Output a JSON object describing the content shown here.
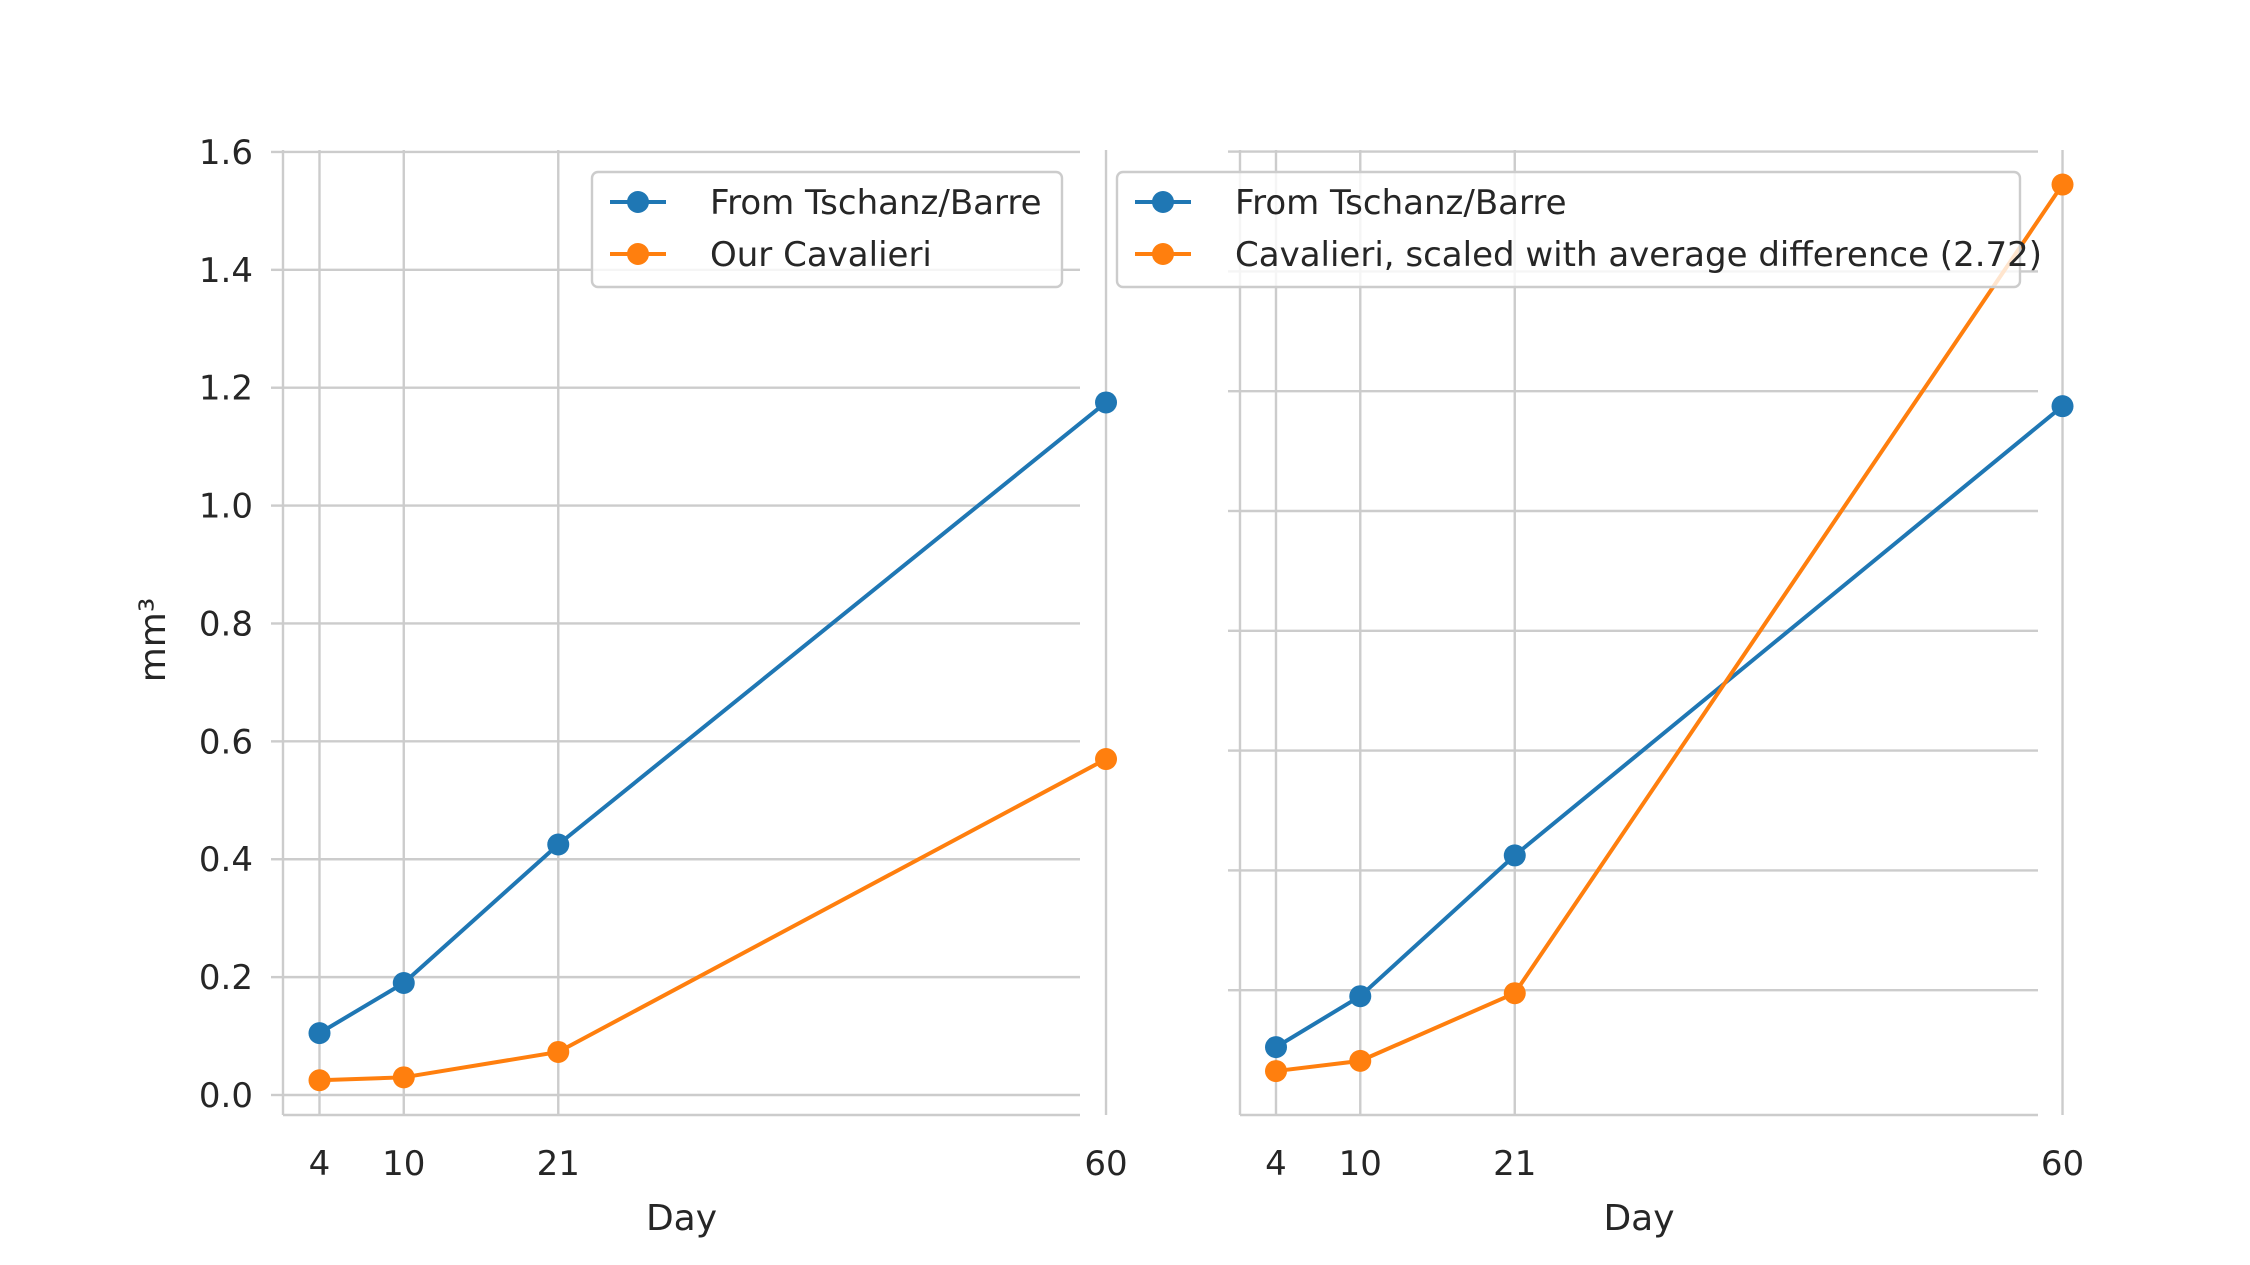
{
  "chart_data": [
    {
      "type": "line",
      "x": [
        4,
        10,
        21,
        60
      ],
      "xticks": [
        4,
        10,
        21,
        60
      ],
      "xlabel": "Day",
      "ylabel": "mm³",
      "ylim": [
        0.0,
        1.6
      ],
      "yticks": [
        0.0,
        0.2,
        0.4,
        0.6,
        0.8,
        1.0,
        1.2,
        1.4,
        1.6
      ],
      "ytick_labels": [
        "0.0",
        "0.2",
        "0.4",
        "0.6",
        "0.8",
        "1.0",
        "1.2",
        "1.4",
        "1.6"
      ],
      "show_yticklabels": true,
      "grid": true,
      "legend": "top-right",
      "series": [
        {
          "name": "From Tschanz/Barre",
          "color": "#1f77b4",
          "values": [
            0.105,
            0.19,
            0.425,
            1.175
          ]
        },
        {
          "name": "Our Cavalieri",
          "color": "#ff7f0e",
          "values": [
            0.025,
            0.03,
            0.073,
            0.57
          ]
        }
      ]
    },
    {
      "type": "line",
      "x": [
        4,
        10,
        21,
        60
      ],
      "xticks": [
        4,
        10,
        21,
        60
      ],
      "xlabel": "Day",
      "ylabel": "",
      "ylim": [
        0.0,
        1.6
      ],
      "yticks": [
        0.2,
        0.4,
        0.6,
        0.8,
        1.0,
        1.2,
        1.4,
        1.6
      ],
      "show_yticklabels": false,
      "grid": true,
      "legend": "top",
      "series": [
        {
          "name": "From Tschanz/Barre",
          "color": "#1f77b4",
          "values": [
            0.105,
            0.19,
            0.425,
            1.175
          ]
        },
        {
          "name": "Cavalieri, scaled with average difference (2.72)",
          "color": "#ff7f0e",
          "values": [
            0.065,
            0.082,
            0.195,
            1.545
          ]
        }
      ]
    }
  ]
}
